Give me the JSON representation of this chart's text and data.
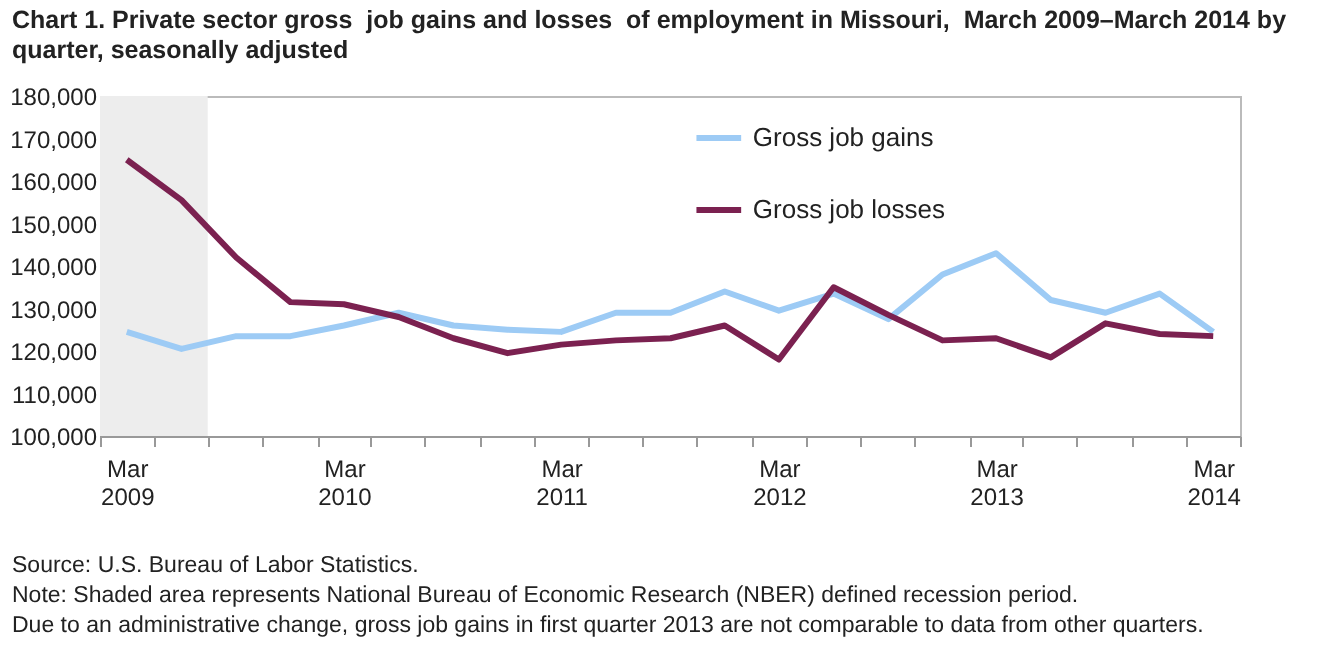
{
  "chart_data": {
    "type": "line",
    "title": "Chart 1. Private sector gross  job gains and losses  of employment in Missouri,  March 2009–March 2014 by quarter, seasonally adjusted",
    "x": [
      "2009-03",
      "2009-06",
      "2009-09",
      "2009-12",
      "2010-03",
      "2010-06",
      "2010-09",
      "2010-12",
      "2011-03",
      "2011-06",
      "2011-09",
      "2011-12",
      "2012-03",
      "2012-06",
      "2012-09",
      "2012-12",
      "2013-03",
      "2013-06",
      "2013-09",
      "2013-12",
      "2014-03"
    ],
    "series": [
      {
        "name": "Gross job gains",
        "color": "#9dcbf5",
        "values": [
          124500,
          120500,
          123500,
          123500,
          126000,
          129000,
          126000,
          125000,
          124500,
          129000,
          129000,
          134000,
          129500,
          133500,
          127500,
          138000,
          143000,
          132000,
          129000,
          133500,
          124500
        ]
      },
      {
        "name": "Gross job losses",
        "color": "#7b2150",
        "values": [
          165000,
          155500,
          142000,
          131500,
          131000,
          128000,
          123000,
          119500,
          121500,
          122500,
          123000,
          126000,
          118000,
          135000,
          128500,
          122500,
          123000,
          118500,
          126500,
          124000,
          123500
        ]
      }
    ],
    "xlim": [
      "2009-01-15",
      "2014-04-15"
    ],
    "xticks": [
      {
        "value": "2009-01-15",
        "label": null
      },
      {
        "value": "2009-03",
        "label": "Mar 2009"
      },
      {
        "value": "2009-04-15",
        "label": null
      },
      {
        "value": "2009-07-15",
        "label": null
      },
      {
        "value": "2009-10-15",
        "label": null
      },
      {
        "value": "2010-01-15",
        "label": null
      },
      {
        "value": "2010-03",
        "label": "Mar 2010"
      },
      {
        "value": "2010-04-15",
        "label": null
      },
      {
        "value": "2010-07-15",
        "label": null
      },
      {
        "value": "2010-10-15",
        "label": null
      },
      {
        "value": "2011-01-15",
        "label": null
      },
      {
        "value": "2011-03",
        "label": "Mar 2011"
      },
      {
        "value": "2011-04-15",
        "label": null
      },
      {
        "value": "2011-07-15",
        "label": null
      },
      {
        "value": "2011-10-15",
        "label": null
      },
      {
        "value": "2012-01-15",
        "label": null
      },
      {
        "value": "2012-03",
        "label": "Mar 2012"
      },
      {
        "value": "2012-04-15",
        "label": null
      },
      {
        "value": "2012-07-15",
        "label": null
      },
      {
        "value": "2012-10-15",
        "label": null
      },
      {
        "value": "2013-01-15",
        "label": null
      },
      {
        "value": "2013-03",
        "label": "Mar 2013"
      },
      {
        "value": "2013-04-15",
        "label": null
      },
      {
        "value": "2013-07-15",
        "label": null
      },
      {
        "value": "2013-10-15",
        "label": null
      },
      {
        "value": "2014-01-15",
        "label": null
      },
      {
        "value": "2014-03",
        "label": "Mar 2014"
      },
      {
        "value": "2014-04-15",
        "label": null
      }
    ],
    "ylim": [
      100000,
      180000
    ],
    "yticks": [
      {
        "value": 100000,
        "label": "100,000"
      },
      {
        "value": 110000,
        "label": "110,000"
      },
      {
        "value": 120000,
        "label": "120,000"
      },
      {
        "value": 130000,
        "label": "130,000"
      },
      {
        "value": 140000,
        "label": "140,000"
      },
      {
        "value": 150000,
        "label": "150,000"
      },
      {
        "value": 160000,
        "label": "160,000"
      },
      {
        "value": 170000,
        "label": "170,000"
      },
      {
        "value": 180000,
        "label": "180,000"
      }
    ],
    "bands": [
      {
        "axis": "x",
        "from": "2009-01-15",
        "to": "2009-07-15",
        "label": null,
        "color": "#ededed"
      }
    ],
    "legend": "top",
    "grid": false,
    "line_style": "solid",
    "marker": "none",
    "annotations": [
      "Source: U.S. Bureau of Labor Statistics.",
      "Note: Shaded area represents National Bureau of Economic Research (NBER) defined recession period.",
      "Due to an administrative change, gross job gains in first quarter 2013 are not comparable to data from other quarters."
    ]
  }
}
